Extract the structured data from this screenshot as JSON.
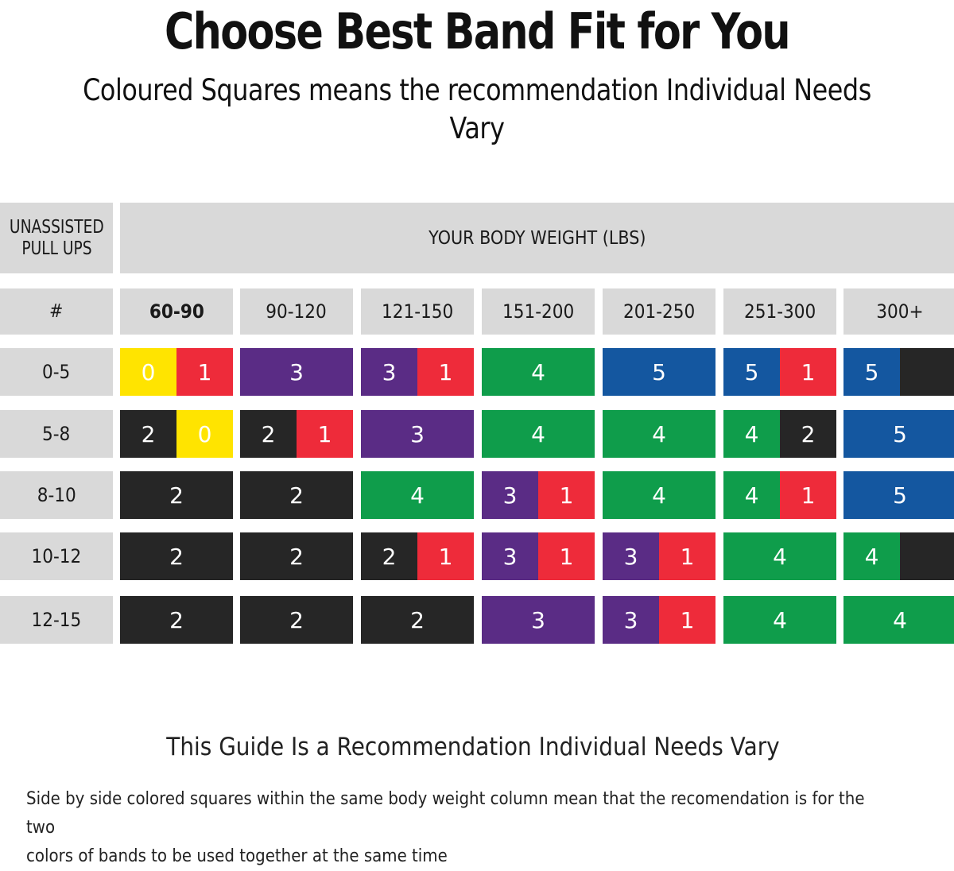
{
  "title": "Choose Best Band Fit for You",
  "subtitle": "Coloured Squares means the recommendation Individual Needs Vary",
  "table": {
    "corner_header_lines": [
      "UNASSISTED",
      "PULL UPS"
    ],
    "weight_header": "YOUR BODY WEIGHT (LBS)",
    "hash_label": "#",
    "weight_columns": [
      "60-90",
      "90-120",
      "121-150",
      "151-200",
      "201-250",
      "251-300",
      "300+"
    ],
    "band_colors": {
      "yellow": "#ffe400",
      "red": "#ee2b3a",
      "purple": "#5a2c85",
      "green": "#0f9d4b",
      "blue": "#1457a0",
      "black": "#262626"
    },
    "rows": [
      {
        "label": "0-5",
        "cells": [
          [
            {
              "n": "0",
              "c": "yellow"
            },
            {
              "n": "1",
              "c": "red"
            }
          ],
          [
            {
              "n": "3",
              "c": "purple"
            }
          ],
          [
            {
              "n": "3",
              "c": "purple"
            },
            {
              "n": "1",
              "c": "red"
            }
          ],
          [
            {
              "n": "4",
              "c": "green"
            }
          ],
          [
            {
              "n": "5",
              "c": "blue"
            }
          ],
          [
            {
              "n": "5",
              "c": "blue"
            },
            {
              "n": "1",
              "c": "red"
            }
          ],
          [
            {
              "n": "5",
              "c": "blue"
            },
            {
              "n": "",
              "c": "black"
            }
          ]
        ]
      },
      {
        "label": "5-8",
        "cells": [
          [
            {
              "n": "2",
              "c": "black"
            },
            {
              "n": "0",
              "c": "yellow"
            }
          ],
          [
            {
              "n": "2",
              "c": "black"
            },
            {
              "n": "1",
              "c": "red"
            }
          ],
          [
            {
              "n": "3",
              "c": "purple"
            }
          ],
          [
            {
              "n": "4",
              "c": "green"
            }
          ],
          [
            {
              "n": "4",
              "c": "green"
            }
          ],
          [
            {
              "n": "4",
              "c": "green"
            },
            {
              "n": "2",
              "c": "black"
            }
          ],
          [
            {
              "n": "5",
              "c": "blue"
            }
          ]
        ]
      },
      {
        "label": "8-10",
        "cells": [
          [
            {
              "n": "2",
              "c": "black"
            }
          ],
          [
            {
              "n": "2",
              "c": "black"
            }
          ],
          [
            {
              "n": "4",
              "c": "green"
            }
          ],
          [
            {
              "n": "3",
              "c": "purple"
            },
            {
              "n": "1",
              "c": "red"
            }
          ],
          [
            {
              "n": "4",
              "c": "green"
            }
          ],
          [
            {
              "n": "4",
              "c": "green"
            },
            {
              "n": "1",
              "c": "red"
            }
          ],
          [
            {
              "n": "5",
              "c": "blue"
            }
          ]
        ]
      },
      {
        "label": "10-12",
        "cells": [
          [
            {
              "n": "2",
              "c": "black"
            }
          ],
          [
            {
              "n": "2",
              "c": "black"
            }
          ],
          [
            {
              "n": "2",
              "c": "black"
            },
            {
              "n": "1",
              "c": "red"
            }
          ],
          [
            {
              "n": "3",
              "c": "purple"
            },
            {
              "n": "1",
              "c": "red"
            }
          ],
          [
            {
              "n": "3",
              "c": "purple"
            },
            {
              "n": "1",
              "c": "red"
            }
          ],
          [
            {
              "n": "4",
              "c": "green"
            }
          ],
          [
            {
              "n": "4",
              "c": "green"
            },
            {
              "n": "",
              "c": "black"
            }
          ]
        ]
      },
      {
        "label": "12-15",
        "cells": [
          [
            {
              "n": "2",
              "c": "black"
            }
          ],
          [
            {
              "n": "2",
              "c": "black"
            }
          ],
          [
            {
              "n": "2",
              "c": "black"
            }
          ],
          [
            {
              "n": "3",
              "c": "purple"
            }
          ],
          [
            {
              "n": "3",
              "c": "purple"
            },
            {
              "n": "1",
              "c": "red"
            }
          ],
          [
            {
              "n": "4",
              "c": "green"
            }
          ],
          [
            {
              "n": "4",
              "c": "green"
            }
          ]
        ]
      }
    ]
  },
  "note": "This Guide Is a Recommendation Individual Needs Vary",
  "footnote_lines": [
    "Side by side colored squares within the same body weight column mean that the recomendation is for the two",
    "colors of bands to be used together at the same time"
  ]
}
